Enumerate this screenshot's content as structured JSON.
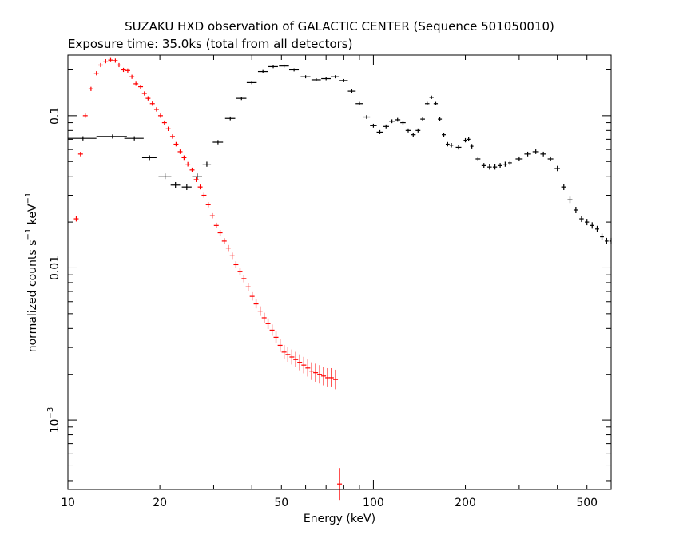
{
  "chart_data": {
    "type": "scatter",
    "title": "SUZAKU HXD observation of GALACTIC CENTER (Sequence 501050010)",
    "subtitle": "Exposure time: 35.0ks (total from all detectors)",
    "xlabel": "Energy (keV)",
    "ylabel_parts": [
      "normalized counts s",
      "−1",
      " keV",
      "−1"
    ],
    "xscale": "log",
    "yscale": "log",
    "xlim": [
      10,
      600
    ],
    "ylim": [
      0.00035,
      0.25
    ],
    "x_ticks": [
      {
        "value": 10,
        "label": "10"
      },
      {
        "value": 20,
        "label": "20"
      },
      {
        "value": 50,
        "label": "50"
      },
      {
        "value": 100,
        "label": "100"
      },
      {
        "value": 200,
        "label": "200"
      },
      {
        "value": 500,
        "label": "500"
      }
    ],
    "y_ticks": [
      {
        "value": 0.1,
        "label": "0.1"
      },
      {
        "value": 0.01,
        "label": "0.01"
      },
      {
        "value": 0.001,
        "label_base": "10",
        "label_exp": "−3"
      }
    ],
    "colors": {
      "pin": "#ff0000",
      "gso": "#000000",
      "frame": "#000000"
    },
    "series": [
      {
        "color": "#000000",
        "x": [
          11.2,
          14.0,
          16.5,
          18.5,
          20.8,
          22.5,
          24.5,
          26.5,
          28.5,
          31.0,
          34.0,
          37.0,
          40.0,
          43.5,
          47.0,
          51.0,
          55.0,
          60.0,
          65.0,
          70.0,
          75.0,
          80.0,
          85.0,
          90.0,
          95.0,
          100.0,
          105.0,
          110.0,
          115.0,
          120.0,
          125.0,
          130.0,
          135.0,
          140.0,
          145.0,
          150.0,
          155.0,
          160.0,
          165.0,
          170.0,
          175.0,
          180.0,
          190.0,
          200.0,
          205.0,
          210.0,
          220.0,
          230.0,
          240.0,
          250.0,
          260.0,
          270.0,
          280.0,
          300.0,
          320.0,
          340.0,
          360.0,
          380.0,
          400.0,
          420.0,
          440.0,
          460.0,
          480.0,
          500.0,
          520.0,
          540.0,
          560.0,
          580.0,
          600.0
        ],
        "x_err": [
          1.2,
          1.6,
          1.2,
          1.0,
          1.0,
          0.8,
          0.9,
          1.0,
          0.9,
          1.2,
          1.3,
          1.4,
          1.5,
          1.6,
          1.7,
          1.9,
          2.0,
          2.2,
          2.3,
          2.5,
          2.5,
          2.5,
          2.5,
          2.5,
          2.5,
          2.5,
          2.5,
          2.5,
          2.5,
          2.5,
          2.5,
          2.5,
          2.5,
          2.5,
          2.5,
          2.5,
          2.5,
          2.5,
          2.5,
          2.5,
          2.5,
          2.5,
          4.0,
          2.5,
          2.5,
          2.5,
          4.0,
          4.0,
          4.0,
          4.0,
          4.0,
          4.0,
          4.0,
          8.0,
          8.0,
          8.0,
          8.0,
          8.0,
          8.0,
          8.0,
          8.0,
          8.0,
          8.0,
          8.0,
          8.0,
          8.0,
          8.0,
          8.0,
          8.0
        ],
        "y": [
          0.071,
          0.073,
          0.071,
          0.053,
          0.04,
          0.035,
          0.034,
          0.04,
          0.048,
          0.067,
          0.096,
          0.13,
          0.165,
          0.195,
          0.21,
          0.212,
          0.2,
          0.18,
          0.172,
          0.175,
          0.18,
          0.17,
          0.145,
          0.12,
          0.098,
          0.086,
          0.078,
          0.085,
          0.092,
          0.094,
          0.09,
          0.08,
          0.075,
          0.08,
          0.095,
          0.12,
          0.132,
          0.12,
          0.095,
          0.075,
          0.065,
          0.064,
          0.062,
          0.069,
          0.07,
          0.063,
          0.052,
          0.047,
          0.046,
          0.046,
          0.047,
          0.048,
          0.049,
          0.052,
          0.056,
          0.058,
          0.056,
          0.052,
          0.045,
          0.034,
          0.028,
          0.024,
          0.021,
          0.02,
          0.019,
          0.018,
          0.016,
          0.015,
          0.015
        ]
      },
      {
        "color": "#ff0000",
        "x": [
          10.65,
          11.0,
          11.4,
          11.9,
          12.4,
          12.8,
          13.3,
          13.8,
          14.3,
          14.7,
          15.2,
          15.7,
          16.2,
          16.7,
          17.3,
          17.8,
          18.3,
          18.9,
          19.5,
          20.1,
          20.7,
          21.3,
          22.0,
          22.6,
          23.3,
          24.0,
          24.7,
          25.5,
          26.3,
          27.1,
          27.9,
          28.8,
          29.7,
          30.6,
          31.5,
          32.5,
          33.5,
          34.5,
          35.5,
          36.6,
          37.7,
          38.9,
          40.1,
          41.3,
          42.6,
          43.9,
          45.2,
          46.6,
          48.0,
          49.5,
          51.0,
          52.5,
          54.1,
          55.7,
          57.4,
          59.2,
          61.0,
          62.8,
          64.7,
          66.7,
          68.7,
          70.8,
          72.9,
          75.2,
          77.5
        ],
        "y": [
          0.021,
          0.056,
          0.1,
          0.15,
          0.19,
          0.215,
          0.228,
          0.232,
          0.23,
          0.215,
          0.2,
          0.198,
          0.18,
          0.162,
          0.155,
          0.14,
          0.13,
          0.12,
          0.11,
          0.1,
          0.09,
          0.082,
          0.073,
          0.065,
          0.058,
          0.053,
          0.048,
          0.044,
          0.038,
          0.034,
          0.03,
          0.026,
          0.022,
          0.019,
          0.017,
          0.015,
          0.0135,
          0.012,
          0.0105,
          0.0095,
          0.0085,
          0.0075,
          0.0065,
          0.0058,
          0.0052,
          0.0047,
          0.0043,
          0.0039,
          0.0035,
          0.0031,
          0.0028,
          0.0027,
          0.0026,
          0.0025,
          0.0024,
          0.0023,
          0.0022,
          0.0021,
          0.00205,
          0.002,
          0.00195,
          0.0019,
          0.0019,
          0.00185,
          0.00038
        ]
      }
    ]
  }
}
